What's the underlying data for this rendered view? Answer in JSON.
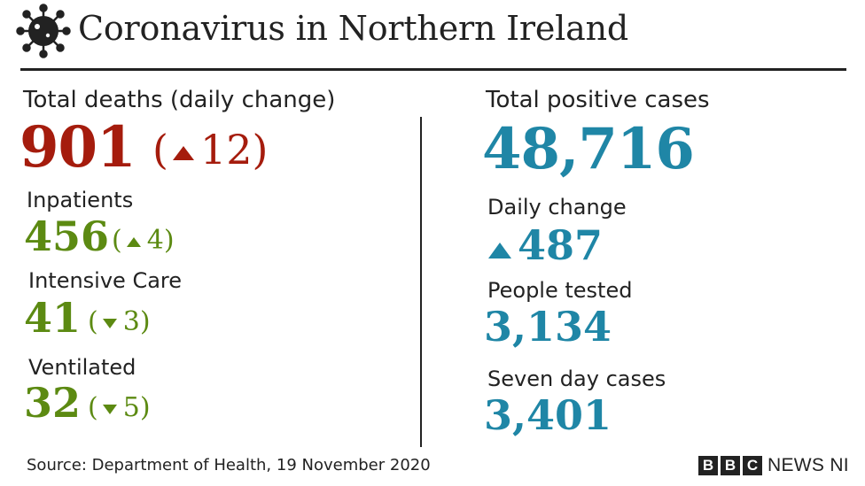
{
  "header": {
    "title": "Coronavirus in Northern Ireland",
    "icon": "coronavirus-icon"
  },
  "deaths": {
    "label": "Total deaths (daily change)",
    "value": "901",
    "change": "12",
    "change_direction": "up"
  },
  "inpatients": {
    "label": "Inpatients",
    "value": "456",
    "change": "4",
    "change_direction": "up"
  },
  "intensive_care": {
    "label": "Intensive Care",
    "value": "41",
    "change": "3",
    "change_direction": "down"
  },
  "ventilated": {
    "label": "Ventilated",
    "value": "32",
    "change": "5",
    "change_direction": "down"
  },
  "positive_cases": {
    "label": "Total positive cases",
    "value": "48,716"
  },
  "daily_change": {
    "label": "Daily change",
    "value": "487",
    "direction": "up"
  },
  "people_tested": {
    "label": "People tested",
    "value": "3,134"
  },
  "seven_day": {
    "label": "Seven day cases",
    "value": "3,401"
  },
  "footer": {
    "source": "Source: Department of Health, 19 November 2020",
    "logo_letters": [
      "B",
      "B",
      "C"
    ],
    "logo_text": "NEWS NI"
  },
  "colors": {
    "red": "#a51c0d",
    "green": "#5c8a12",
    "blue": "#1f86a6",
    "text": "#222222"
  }
}
